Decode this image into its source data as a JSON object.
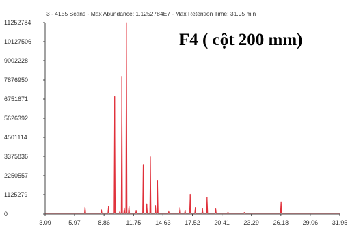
{
  "chart_data": {
    "type": "line",
    "header": "3 - 4155 Scans - Max Abundance: 1.1252784E7 - Max Retention Time: 31.95 min",
    "overlay_label": "F4 ( cột 200 mm)",
    "y_tick_labels": [
      "11252784",
      "10127506",
      "9002228",
      "7876950",
      "6751671",
      "5626392",
      "4501114",
      "3375836",
      "2250557",
      "1125279",
      "0"
    ],
    "y_ticks": [
      11252784,
      10127506,
      9002228,
      7876950,
      6751671,
      5626392,
      4501114,
      3375836,
      2250557,
      1125279,
      0
    ],
    "x_tick_labels": [
      "3.09",
      "5.97",
      "8.86",
      "11.75",
      "14.63",
      "17.52",
      "20.41",
      "23.29",
      "26.18",
      "29.06",
      "31.95"
    ],
    "x_ticks": [
      3.09,
      5.97,
      8.86,
      11.75,
      14.63,
      17.52,
      20.41,
      23.29,
      26.18,
      29.06,
      31.95
    ],
    "xlim": [
      3.09,
      31.95
    ],
    "ylim": [
      0,
      11252784
    ],
    "baseline": 50000,
    "peaks": [
      {
        "x": 7.0,
        "y": 400000
      },
      {
        "x": 8.6,
        "y": 250000
      },
      {
        "x": 9.3,
        "y": 450000
      },
      {
        "x": 9.9,
        "y": 6900000
      },
      {
        "x": 10.4,
        "y": 150000
      },
      {
        "x": 10.6,
        "y": 8100000
      },
      {
        "x": 10.85,
        "y": 350000
      },
      {
        "x": 11.05,
        "y": 11252784
      },
      {
        "x": 11.3,
        "y": 450000
      },
      {
        "x": 12.0,
        "y": 180000
      },
      {
        "x": 12.7,
        "y": 2900000
      },
      {
        "x": 13.05,
        "y": 600000
      },
      {
        "x": 13.4,
        "y": 3350000
      },
      {
        "x": 13.9,
        "y": 500000
      },
      {
        "x": 14.1,
        "y": 1950000
      },
      {
        "x": 15.2,
        "y": 150000
      },
      {
        "x": 16.3,
        "y": 380000
      },
      {
        "x": 16.8,
        "y": 220000
      },
      {
        "x": 17.3,
        "y": 1150000
      },
      {
        "x": 17.8,
        "y": 380000
      },
      {
        "x": 18.5,
        "y": 320000
      },
      {
        "x": 18.95,
        "y": 980000
      },
      {
        "x": 19.8,
        "y": 300000
      },
      {
        "x": 21.0,
        "y": 120000
      },
      {
        "x": 22.6,
        "y": 100000
      },
      {
        "x": 26.2,
        "y": 720000
      }
    ],
    "line_color": "#e0303a",
    "grid": false
  }
}
